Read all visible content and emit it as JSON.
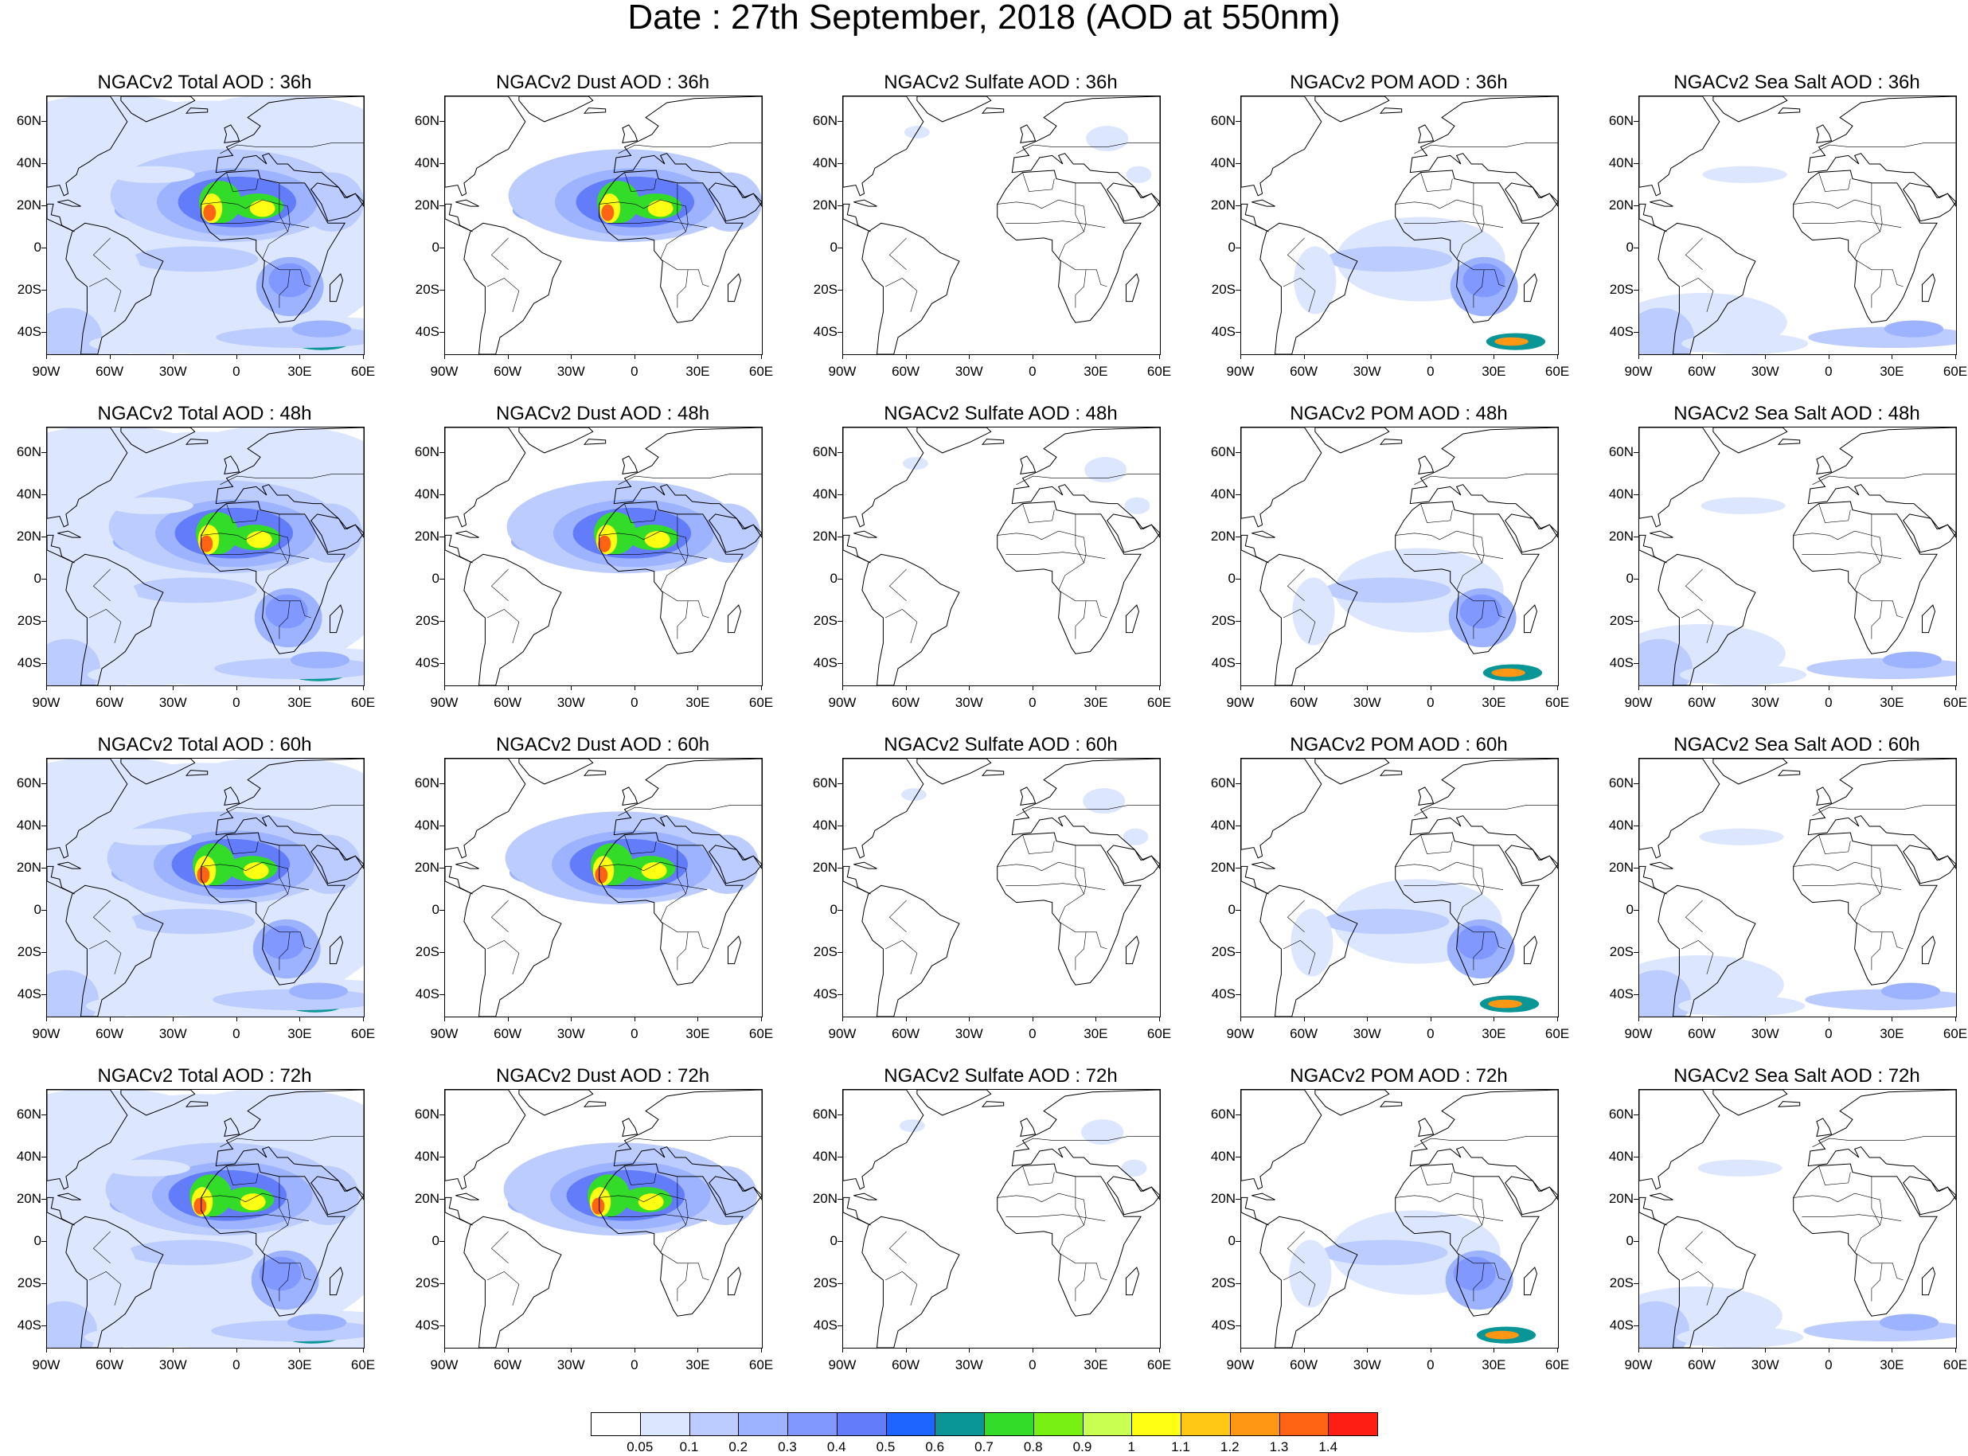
{
  "title": "Date : 27th September, 2018 (AOD at 550nm)",
  "lat_labels": [
    "60N",
    "40N",
    "20N",
    "0",
    "20S",
    "40S"
  ],
  "lat_values": [
    60,
    40,
    20,
    0,
    -20,
    -40
  ],
  "lon_labels": [
    "90W",
    "60W",
    "30W",
    "0",
    "30E",
    "60E"
  ],
  "lon_values": [
    -90,
    -60,
    -30,
    0,
    30,
    60
  ],
  "map_extent": {
    "lon": [
      -90,
      60
    ],
    "lat": [
      -50,
      72
    ]
  },
  "panels": [
    [
      {
        "title": "NGACv2 Total AOD : 36h",
        "species": "total",
        "hour": 36
      },
      {
        "title": "NGACv2 Dust AOD : 36h",
        "species": "dust",
        "hour": 36
      },
      {
        "title": "NGACv2 Sulfate AOD : 36h",
        "species": "sulfate",
        "hour": 36
      },
      {
        "title": "NGACv2 POM AOD : 36h",
        "species": "pom",
        "hour": 36
      },
      {
        "title": "NGACv2 Sea Salt AOD : 36h",
        "species": "seasalt",
        "hour": 36
      }
    ],
    [
      {
        "title": "NGACv2 Total AOD : 48h",
        "species": "total",
        "hour": 48
      },
      {
        "title": "NGACv2 Dust AOD : 48h",
        "species": "dust",
        "hour": 48
      },
      {
        "title": "NGACv2 Sulfate AOD : 48h",
        "species": "sulfate",
        "hour": 48
      },
      {
        "title": "NGACv2 POM AOD : 48h",
        "species": "pom",
        "hour": 48
      },
      {
        "title": "NGACv2 Sea Salt AOD : 48h",
        "species": "seasalt",
        "hour": 48
      }
    ],
    [
      {
        "title": "NGACv2 Total AOD : 60h",
        "species": "total",
        "hour": 60
      },
      {
        "title": "NGACv2 Dust AOD : 60h",
        "species": "dust",
        "hour": 60
      },
      {
        "title": "NGACv2 Sulfate AOD : 60h",
        "species": "sulfate",
        "hour": 60
      },
      {
        "title": "NGACv2 POM AOD : 60h",
        "species": "pom",
        "hour": 60
      },
      {
        "title": "NGACv2 Sea Salt AOD : 60h",
        "species": "seasalt",
        "hour": 60
      }
    ],
    [
      {
        "title": "NGACv2 Total AOD : 72h",
        "species": "total",
        "hour": 72
      },
      {
        "title": "NGACv2 Dust AOD : 72h",
        "species": "dust",
        "hour": 72
      },
      {
        "title": "NGACv2 Sulfate AOD : 72h",
        "species": "sulfate",
        "hour": 72
      },
      {
        "title": "NGACv2 POM AOD : 72h",
        "species": "pom",
        "hour": 72
      },
      {
        "title": "NGACv2 Sea Salt  AOD : 72h",
        "species": "seasalt",
        "hour": 72
      }
    ]
  ],
  "colorbar": {
    "labels": [
      "0.05",
      "0.1",
      "0.2",
      "0.3",
      "0.4",
      "0.5",
      "0.6",
      "0.7",
      "0.8",
      "0.9",
      "1",
      "1.1",
      "1.2",
      "1.3",
      "1.4"
    ],
    "colors": [
      "#ffffff",
      "#dce6ff",
      "#bcccff",
      "#9db3ff",
      "#8098ff",
      "#637cfa",
      "#1e64ff",
      "#0a9696",
      "#32dc28",
      "#78f014",
      "#c8ff50",
      "#ffff14",
      "#ffc814",
      "#ff9614",
      "#ff6414",
      "#ff1e14"
    ]
  }
}
